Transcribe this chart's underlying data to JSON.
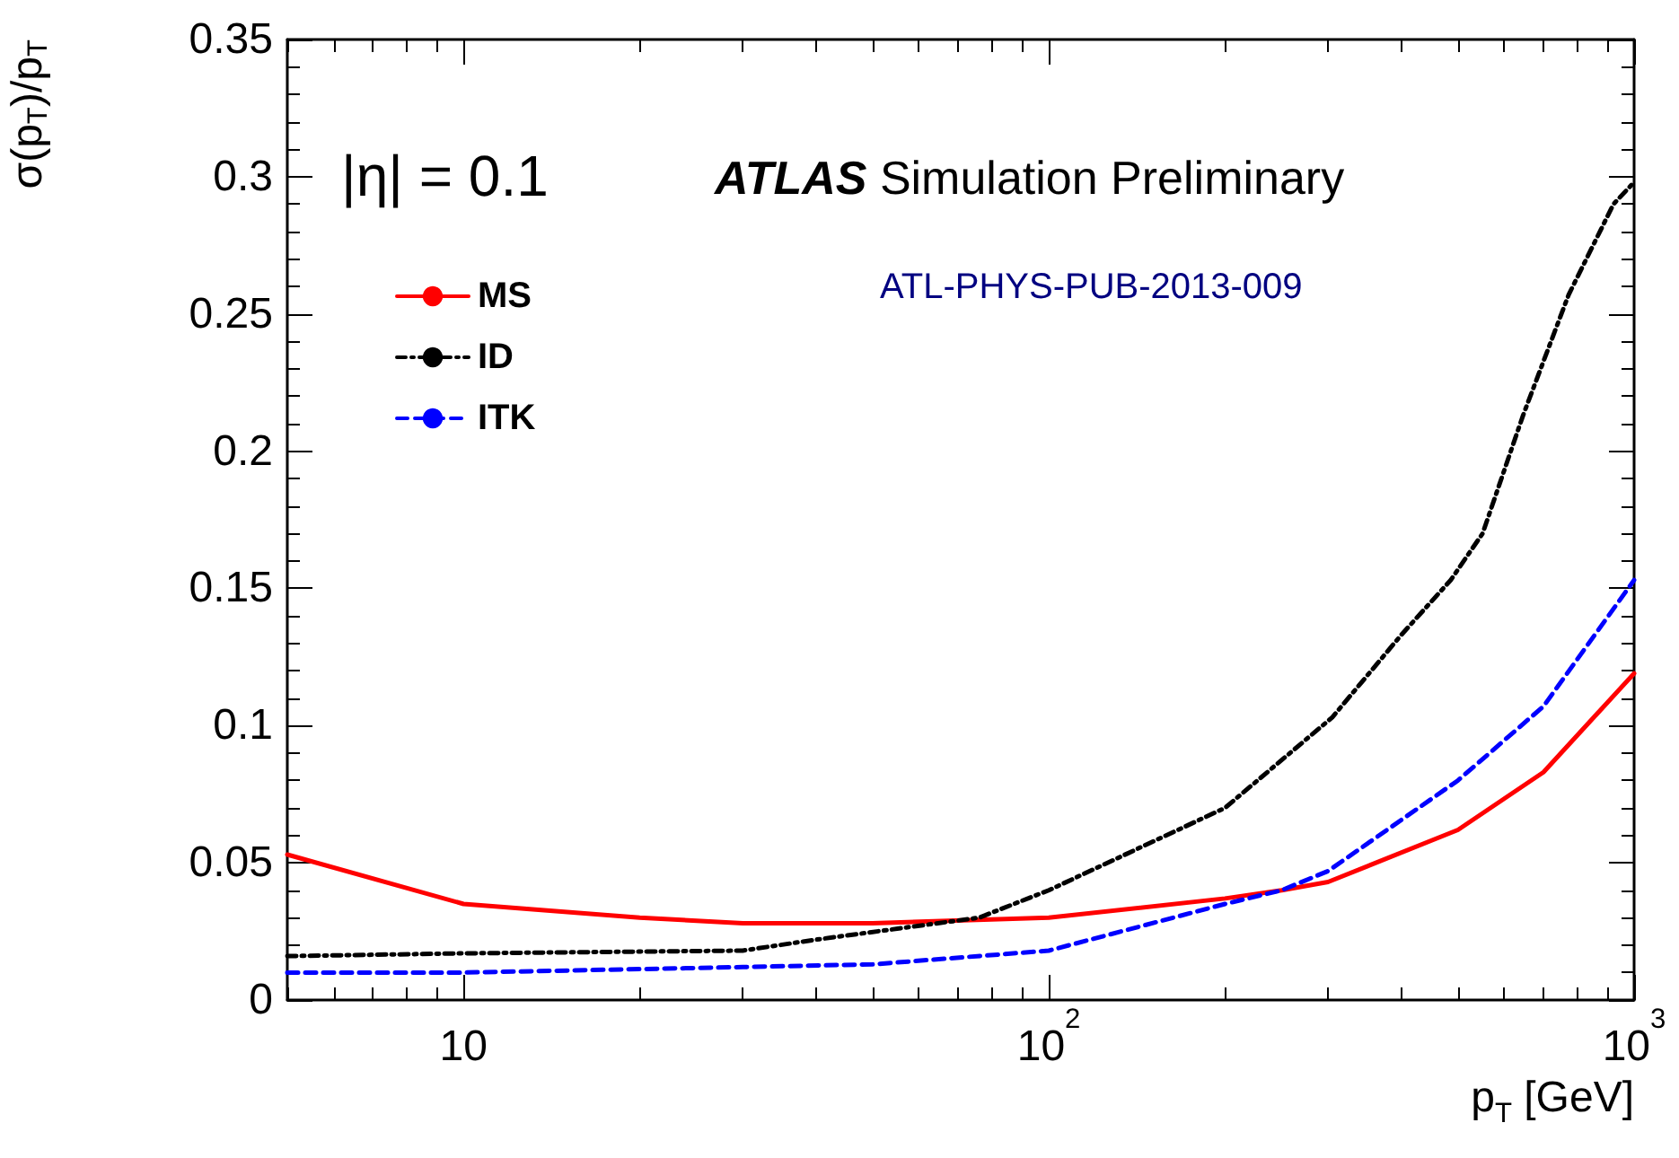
{
  "chart_data": {
    "type": "line",
    "xlabel": "p$_{T}$ [GeV]",
    "ylabel": "σ(p$_{T}$)/p$_{T}$",
    "annotations": [
      "|η| = 0.1",
      "ATLAS Simulation Preliminary",
      "ATL-PHYS-PUB-2013-009"
    ],
    "log": "x",
    "xlim": [
      5,
      1000
    ],
    "xticks": [
      {
        "value": 10,
        "label": "10"
      },
      {
        "value": 100,
        "label": "10$^{2}$"
      },
      {
        "value": 1000,
        "label": "10$^{3}$"
      }
    ],
    "ylim": [
      0,
      0.35
    ],
    "yticks": [
      0,
      0.05,
      0.1,
      0.15,
      0.2,
      0.25,
      0.3,
      0.35
    ],
    "grid": false,
    "legend": "top left",
    "marker": "none",
    "series": [
      {
        "name": "MS",
        "color": "#ff0000",
        "line_style": "solid",
        "x": [
          5,
          10,
          20,
          30,
          50,
          100,
          200,
          250,
          300,
          500,
          700,
          1000
        ],
        "values": [
          0.053,
          0.035,
          0.03,
          0.028,
          0.028,
          0.03,
          0.037,
          0.04,
          0.043,
          0.062,
          0.083,
          0.119
        ]
      },
      {
        "name": "ID",
        "color": "#000000",
        "line_style": "dotted",
        "x": [
          5,
          10,
          30,
          40,
          76,
          100,
          200,
          305,
          400,
          486,
          551,
          646,
          773,
          922,
          1000
        ],
        "values": [
          0.016,
          0.017,
          0.018,
          0.022,
          0.03,
          0.04,
          0.07,
          0.103,
          0.133,
          0.153,
          0.17,
          0.213,
          0.257,
          0.29,
          0.298
        ]
      },
      {
        "name": "ITK",
        "color": "#0000ff",
        "line_style": "dashed",
        "x": [
          5,
          10,
          30,
          50,
          100,
          200,
          250,
          300,
          500,
          700,
          1000
        ],
        "values": [
          0.01,
          0.01,
          0.012,
          0.013,
          0.018,
          0.035,
          0.04,
          0.047,
          0.08,
          0.107,
          0.153
        ]
      }
    ]
  }
}
